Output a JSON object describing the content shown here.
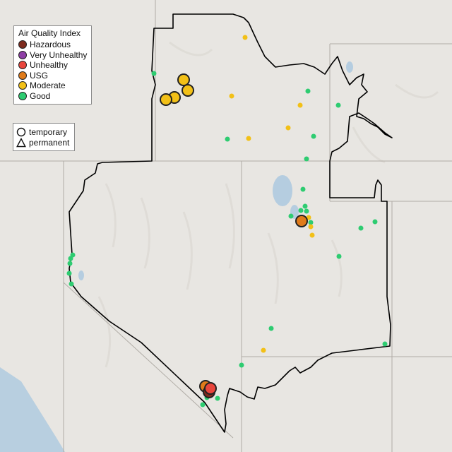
{
  "legend": {
    "title": "Air Quality Index",
    "categories": [
      {
        "label": "Hazardous",
        "color": "#7e2b1e"
      },
      {
        "label": "Very Unhealthy",
        "color": "#8e3ea6"
      },
      {
        "label": "Unhealthy",
        "color": "#e8453c"
      },
      {
        "label": "USG",
        "color": "#e07b1a"
      },
      {
        "label": "Moderate",
        "color": "#f2c017"
      },
      {
        "label": "Good",
        "color": "#2ecc71"
      }
    ]
  },
  "monitor_type_legend": {
    "temporary_label": "temporary",
    "permanent_label": "permanent"
  },
  "colors": {
    "basemap": "#e8e6e2",
    "state_lines": "#b0aca6",
    "boundary": "#000000"
  },
  "monitors": [
    {
      "aqi": "Moderate",
      "type": "temporary"
    },
    {
      "aqi": "Moderate",
      "type": "temporary"
    },
    {
      "aqi": "Moderate",
      "type": "temporary"
    },
    {
      "aqi": "Moderate",
      "type": "temporary"
    },
    {
      "aqi": "Moderate",
      "type": "temporary"
    },
    {
      "aqi": "USG",
      "type": "temporary"
    },
    {
      "aqi": "USG",
      "type": "temporary"
    },
    {
      "aqi": "Unhealthy",
      "type": "temporary"
    },
    {
      "aqi": "Unhealthy",
      "type": "temporary"
    }
  ]
}
